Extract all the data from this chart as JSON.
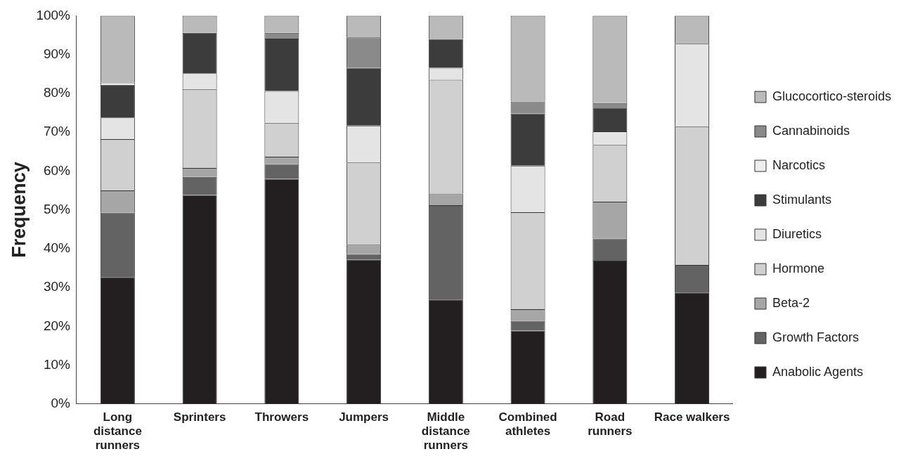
{
  "chart_data": {
    "type": "bar",
    "stacked": true,
    "ylabel": "Frequency",
    "categories": [
      "Long\ndistance\nrunners",
      "Sprinters",
      "Throwers",
      "Jumpers",
      "Middle\ndistance\nrunners",
      "Combined\nathletes",
      "Road\nrunners",
      "Race walkers"
    ],
    "series": [
      {
        "name": "Anabolic Agents",
        "color": "#231f20",
        "values": [
          32.7,
          53.8,
          58,
          37.1,
          26.9,
          18.9,
          36.9,
          28.7
        ]
      },
      {
        "name": "Growth Factors",
        "color": "#636363",
        "values": [
          16.6,
          4.7,
          3.8,
          1.5,
          24.3,
          2.5,
          5.7,
          7.1
        ]
      },
      {
        "name": "Beta-2",
        "color": "#a6a6a6",
        "values": [
          5.7,
          2.3,
          1.9,
          2.4,
          3,
          3,
          9.5,
          0
        ]
      },
      {
        "name": "Hormone",
        "color": "#d0d0d0",
        "values": [
          13.2,
          20.3,
          8.7,
          21.2,
          29.3,
          25,
          14.6,
          35.7
        ]
      },
      {
        "name": "Diuretics",
        "color": "#e4e4e4",
        "values": [
          5.6,
          4.1,
          8.2,
          9.5,
          3.1,
          12,
          3.5,
          21.3
        ]
      },
      {
        "name": "Stimulants",
        "color": "#3c3c3c",
        "values": [
          8.4,
          10.4,
          13.5,
          14.9,
          7.4,
          13.4,
          6.1,
          0
        ]
      },
      {
        "name": "Narcotics",
        "color": "#eeeeee",
        "values": [
          0.6,
          null,
          0,
          0,
          0,
          0,
          0,
          0
        ]
      },
      {
        "name": "Cannabinoids",
        "color": "#8a8a8a",
        "values": [
          0,
          0,
          1.5,
          7.8,
          0,
          3.1,
          1.2,
          0
        ]
      },
      {
        "name": "Glucocortico-steroids",
        "color": "#bababa",
        "values": [
          17.2,
          4.4,
          4.4,
          5.6,
          6,
          22.1,
          22.5,
          7.2
        ]
      }
    ],
    "ylim": [
      0,
      100
    ],
    "yticks": [
      {
        "value": 0,
        "label": "0%"
      },
      {
        "value": 10,
        "label": "10%"
      },
      {
        "value": 20,
        "label": "20%"
      },
      {
        "value": 30,
        "label": "30%"
      },
      {
        "value": 40,
        "label": "40%"
      },
      {
        "value": 50,
        "label": "50%"
      },
      {
        "value": 60,
        "label": "60%"
      },
      {
        "value": 70,
        "label": "70%"
      },
      {
        "value": 80,
        "label": "80%"
      },
      {
        "value": 90,
        "label": "90%"
      },
      {
        "value": 100,
        "label": "100%"
      }
    ],
    "grid": false,
    "legend": "right"
  }
}
